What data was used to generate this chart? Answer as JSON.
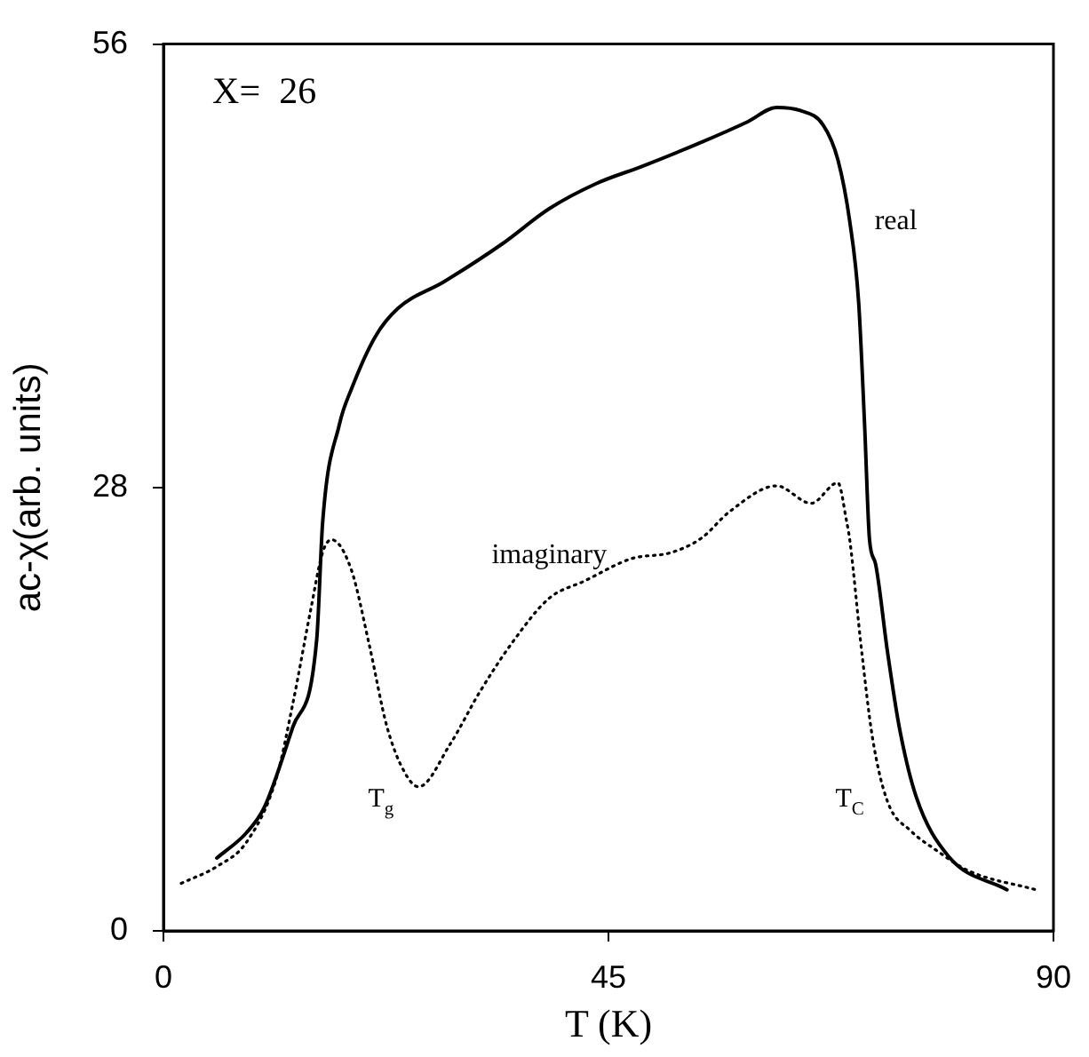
{
  "chart_data": {
    "type": "line",
    "xlabel": "T (K)",
    "ylabel": "ac-χ(arb. units)",
    "xlim": [
      0,
      90
    ],
    "xticks": [
      0,
      45,
      90
    ],
    "ylim": [
      0,
      56
    ],
    "yticks": [
      0,
      28,
      56
    ],
    "grid": false,
    "legend": false,
    "marker": "none",
    "series": [
      {
        "name": "real",
        "color": "#000000",
        "line_style": "solid",
        "x": [
          5.4,
          8.4,
          10.2,
          13.1,
          15.5,
          16.1,
          17.8,
          19,
          21.4,
          23.7,
          28.4,
          34.3,
          39,
          43.8,
          48.5,
          54.4,
          59.1,
          62,
          64.4,
          66.7,
          68.2,
          69.4,
          70.3,
          70.9,
          71.4,
          72,
          73.2,
          74.4,
          76.1,
          79.4,
          85.3
        ],
        "values": [
          4.6,
          6.2,
          7.8,
          12.9,
          18.4,
          25.8,
          32,
          34.2,
          37.5,
          39.3,
          41,
          43.4,
          45.6,
          47.2,
          48.3,
          49.8,
          51.1,
          52,
          51.8,
          50.9,
          48.7,
          44.8,
          39.7,
          32,
          24.7,
          23.2,
          17.7,
          12.9,
          8.5,
          4.7,
          2.6
        ]
      },
      {
        "name": "imaginary",
        "color": "#000000",
        "line_style": "dotted",
        "x": [
          1.8,
          5.5,
          8.4,
          11.4,
          13.1,
          14.9,
          16.1,
          17,
          19,
          20.8,
          22.6,
          24.4,
          25.8,
          29,
          32,
          35.5,
          39,
          42.6,
          47.3,
          51.4,
          54.4,
          57.3,
          62,
          65.5,
          68.2,
          69.1,
          69.4,
          70.6,
          71.7,
          73.2,
          75.6,
          77.9,
          81.4,
          88.2
        ],
        "values": [
          3,
          4.1,
          5.6,
          9.6,
          14.4,
          20.3,
          23.9,
          24.7,
          22.8,
          18.1,
          12.9,
          10,
          9.1,
          11.8,
          15.1,
          18.4,
          21,
          22.1,
          23.5,
          23.9,
          24.8,
          26.5,
          28.1,
          27,
          28.3,
          25.8,
          24.7,
          17.7,
          12.2,
          8.2,
          6.3,
          5.2,
          3.8,
          2.6
        ]
      }
    ],
    "annotations": [
      "X=  26",
      "T$_{g}$",
      "T$_{C}$"
    ]
  }
}
